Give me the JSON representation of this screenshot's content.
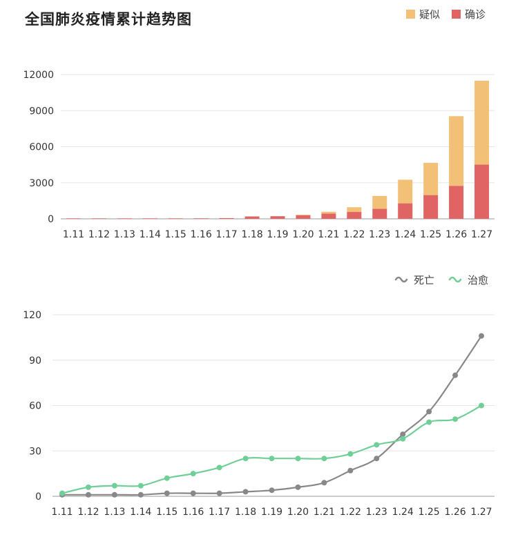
{
  "title": "全国肺炎疫情累计趋势图",
  "chart_data": [
    {
      "type": "bar",
      "stacked": true,
      "categories": [
        "1.11",
        "1.12",
        "1.13",
        "1.14",
        "1.15",
        "1.16",
        "1.17",
        "1.18",
        "1.19",
        "1.20",
        "1.21",
        "1.22",
        "1.23",
        "1.24",
        "1.25",
        "1.26",
        "1.27"
      ],
      "series": [
        {
          "name": "确诊",
          "color": "#e06464",
          "values": [
            41,
            41,
            41,
            41,
            41,
            45,
            62,
            198,
            218,
            291,
            440,
            571,
            830,
            1287,
            1975,
            2744,
            4515
          ]
        },
        {
          "name": "疑似",
          "color": "#f3c078",
          "values": [
            0,
            0,
            0,
            0,
            0,
            0,
            0,
            0,
            0,
            54,
            149,
            393,
            1072,
            1965,
            2684,
            5794,
            6973
          ]
        }
      ],
      "legend": {
        "position": "top-right"
      },
      "ylim": [
        0,
        12000
      ],
      "yticks": [
        "0",
        "3000",
        "6000",
        "9000",
        "12000"
      ],
      "grid": true
    },
    {
      "type": "line",
      "categories": [
        "1.11",
        "1.12",
        "1.13",
        "1.14",
        "1.15",
        "1.16",
        "1.17",
        "1.18",
        "1.19",
        "1.20",
        "1.21",
        "1.22",
        "1.23",
        "1.24",
        "1.25",
        "1.26",
        "1.27"
      ],
      "series": [
        {
          "name": "死亡",
          "color": "#888888",
          "values": [
            1,
            1,
            1,
            1,
            2,
            2,
            2,
            3,
            4,
            6,
            9,
            17,
            25,
            41,
            56,
            80,
            106
          ]
        },
        {
          "name": "治愈",
          "color": "#6fcf97",
          "values": [
            2,
            6,
            7,
            7,
            12,
            15,
            19,
            25,
            25,
            25,
            25,
            28,
            34,
            38,
            49,
            51,
            60
          ]
        }
      ],
      "legend": {
        "position": "top-right"
      },
      "ylim": [
        0,
        120
      ],
      "yticks": [
        "0",
        "30",
        "60",
        "90",
        "120"
      ],
      "grid": true
    }
  ]
}
